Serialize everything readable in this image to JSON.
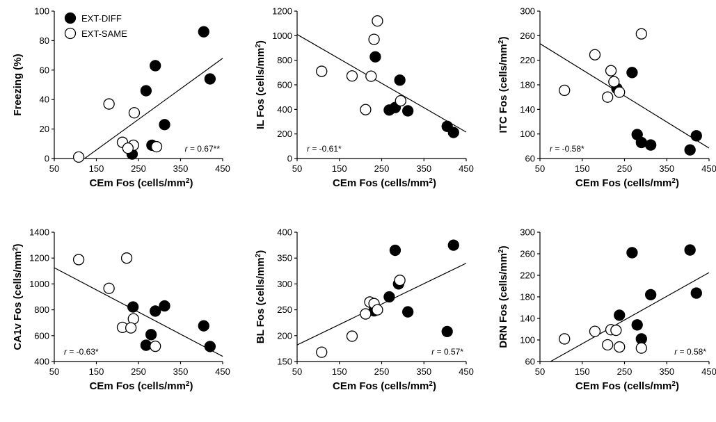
{
  "legend": {
    "entries": [
      {
        "label": "EXT-DIFF",
        "marker": "filled"
      },
      {
        "label": "EXT-SAME",
        "marker": "open"
      }
    ]
  },
  "chart_data": [
    {
      "type": "scatter",
      "xlabel": "CEm Fos (cells/mm²)",
      "ylabel": "Freezing (%)",
      "xlim": [
        50,
        450
      ],
      "xticks": [
        50,
        150,
        250,
        350,
        450
      ],
      "ylim": [
        0,
        100
      ],
      "yticks": [
        0,
        20,
        40,
        60,
        80,
        100
      ],
      "annotation": "r = 0.67**",
      "annotation_pos": "bottom-right",
      "fit_line": {
        "x": [
          122,
          450
        ],
        "y": [
          0,
          68
        ]
      },
      "series": [
        {
          "name": "EXT-DIFF",
          "marker": "filled",
          "points": [
            [
              405,
              86
            ],
            [
              290,
              63
            ],
            [
              420,
              54
            ],
            [
              268,
              46
            ],
            [
              312,
              23
            ],
            [
              282,
              9
            ],
            [
              235,
              3
            ]
          ]
        },
        {
          "name": "EXT-SAME",
          "marker": "open",
          "points": [
            [
              180,
              37
            ],
            [
              240,
              31
            ],
            [
              212,
              11
            ],
            [
              238,
              9
            ],
            [
              293,
              8
            ],
            [
              225,
              7
            ],
            [
              108,
              1
            ]
          ]
        }
      ]
    },
    {
      "type": "scatter",
      "xlabel": "CEm Fos (cells/mm²)",
      "ylabel": "IL Fos (cells/mm²)",
      "xlim": [
        50,
        450
      ],
      "xticks": [
        50,
        150,
        250,
        350,
        450
      ],
      "ylim": [
        0,
        1200
      ],
      "yticks": [
        0,
        200,
        400,
        600,
        800,
        1000,
        1200
      ],
      "annotation": "r = -0.61*",
      "annotation_pos": "bottom-left",
      "fit_line": {
        "x": [
          50,
          450
        ],
        "y": [
          1010,
          215
        ]
      },
      "series": [
        {
          "name": "EXT-DIFF",
          "marker": "filled",
          "points": [
            [
              235,
              828
            ],
            [
              293,
              638
            ],
            [
              268,
              395
            ],
            [
              282,
              415
            ],
            [
              312,
              388
            ],
            [
              405,
              262
            ],
            [
              420,
              212
            ]
          ]
        },
        {
          "name": "EXT-SAME",
          "marker": "open",
          "points": [
            [
              240,
              1120
            ],
            [
              232,
              970
            ],
            [
              108,
              710
            ],
            [
              180,
              672
            ],
            [
              225,
              670
            ],
            [
              295,
              470
            ],
            [
              212,
              398
            ]
          ]
        }
      ]
    },
    {
      "type": "scatter",
      "xlabel": "CEm Fos (cells/mm²)",
      "ylabel": "ITC Fos (cells/mm²)",
      "xlim": [
        50,
        450
      ],
      "xticks": [
        50,
        150,
        250,
        350,
        450
      ],
      "ylim": [
        60,
        300
      ],
      "yticks": [
        60,
        100,
        140,
        180,
        220,
        260,
        300
      ],
      "annotation": "r = -0.58*",
      "annotation_pos": "bottom-left",
      "fit_line": {
        "x": [
          50,
          450
        ],
        "y": [
          247,
          77
        ]
      },
      "series": [
        {
          "name": "EXT-DIFF",
          "marker": "filled",
          "points": [
            [
              268,
              200
            ],
            [
              232,
              174
            ],
            [
              280,
              99
            ],
            [
              290,
              86
            ],
            [
              312,
              82
            ],
            [
              405,
              74
            ],
            [
              420,
              97
            ]
          ]
        },
        {
          "name": "EXT-SAME",
          "marker": "open",
          "points": [
            [
              290,
              263
            ],
            [
              180,
              229
            ],
            [
              218,
              203
            ],
            [
              225,
              185
            ],
            [
              238,
              168
            ],
            [
              210,
              160
            ],
            [
              108,
              171
            ]
          ]
        }
      ]
    },
    {
      "type": "scatter",
      "xlabel": "CEm Fos (cells/mm²)",
      "ylabel": "CA1v Fos (cells/mm²)",
      "xlim": [
        50,
        450
      ],
      "xticks": [
        50,
        150,
        250,
        350,
        450
      ],
      "ylim": [
        400,
        1400
      ],
      "yticks": [
        400,
        600,
        800,
        1000,
        1200,
        1400
      ],
      "annotation": "r = -0.63*",
      "annotation_pos": "bottom-left",
      "fit_line": {
        "x": [
          50,
          450
        ],
        "y": [
          1125,
          440
        ]
      },
      "series": [
        {
          "name": "EXT-DIFF",
          "marker": "filled",
          "points": [
            [
              237,
              822
            ],
            [
              312,
              830
            ],
            [
              290,
              790
            ],
            [
              280,
              608
            ],
            [
              268,
              526
            ],
            [
              405,
              676
            ],
            [
              420,
              516
            ]
          ]
        },
        {
          "name": "EXT-SAME",
          "marker": "open",
          "points": [
            [
              108,
              1188
            ],
            [
              222,
              1200
            ],
            [
              180,
              966
            ],
            [
              238,
              730
            ],
            [
              212,
              664
            ],
            [
              232,
              660
            ],
            [
              290,
              518
            ]
          ]
        }
      ]
    },
    {
      "type": "scatter",
      "xlabel": "CEm Fos (cells/mm²)",
      "ylabel": "BL Fos (cells/mm²)",
      "xlim": [
        50,
        450
      ],
      "xticks": [
        50,
        150,
        250,
        350,
        450
      ],
      "ylim": [
        150,
        400
      ],
      "yticks": [
        150,
        200,
        250,
        300,
        350,
        400
      ],
      "annotation": "r = 0.57*",
      "annotation_pos": "bottom-right",
      "fit_line": {
        "x": [
          50,
          450
        ],
        "y": [
          182,
          340
        ]
      },
      "series": [
        {
          "name": "EXT-DIFF",
          "marker": "filled",
          "points": [
            [
              420,
              375
            ],
            [
              282,
              365
            ],
            [
              290,
              300
            ],
            [
              268,
              275
            ],
            [
              312,
              246
            ],
            [
              232,
              248
            ],
            [
              405,
              208
            ]
          ]
        },
        {
          "name": "EXT-SAME",
          "marker": "open",
          "points": [
            [
              293,
              307
            ],
            [
              222,
              265
            ],
            [
              232,
              262
            ],
            [
              240,
              250
            ],
            [
              212,
              242
            ],
            [
              180,
              199
            ],
            [
              108,
              168
            ]
          ]
        }
      ]
    },
    {
      "type": "scatter",
      "xlabel": "CEm Fos (cells/mm²)",
      "ylabel": "DRN Fos (cells/mm²)",
      "xlim": [
        50,
        450
      ],
      "xticks": [
        50,
        150,
        250,
        350,
        450
      ],
      "ylim": [
        60,
        300
      ],
      "yticks": [
        60,
        100,
        140,
        180,
        220,
        260,
        300
      ],
      "annotation": "r = 0.58*",
      "annotation_pos": "bottom-right",
      "fit_line": {
        "x": [
          75,
          450
        ],
        "y": [
          60,
          225
        ]
      },
      "series": [
        {
          "name": "EXT-DIFF",
          "marker": "filled",
          "points": [
            [
              405,
              267
            ],
            [
              268,
              262
            ],
            [
              420,
              187
            ],
            [
              312,
              184
            ],
            [
              238,
              146
            ],
            [
              280,
              128
            ],
            [
              290,
              102
            ]
          ]
        },
        {
          "name": "EXT-SAME",
          "marker": "open",
          "points": [
            [
              108,
              102
            ],
            [
              180,
              116
            ],
            [
              218,
              119
            ],
            [
              230,
              118
            ],
            [
              210,
              91
            ],
            [
              238,
              87
            ],
            [
              290,
              85
            ]
          ]
        }
      ]
    }
  ]
}
